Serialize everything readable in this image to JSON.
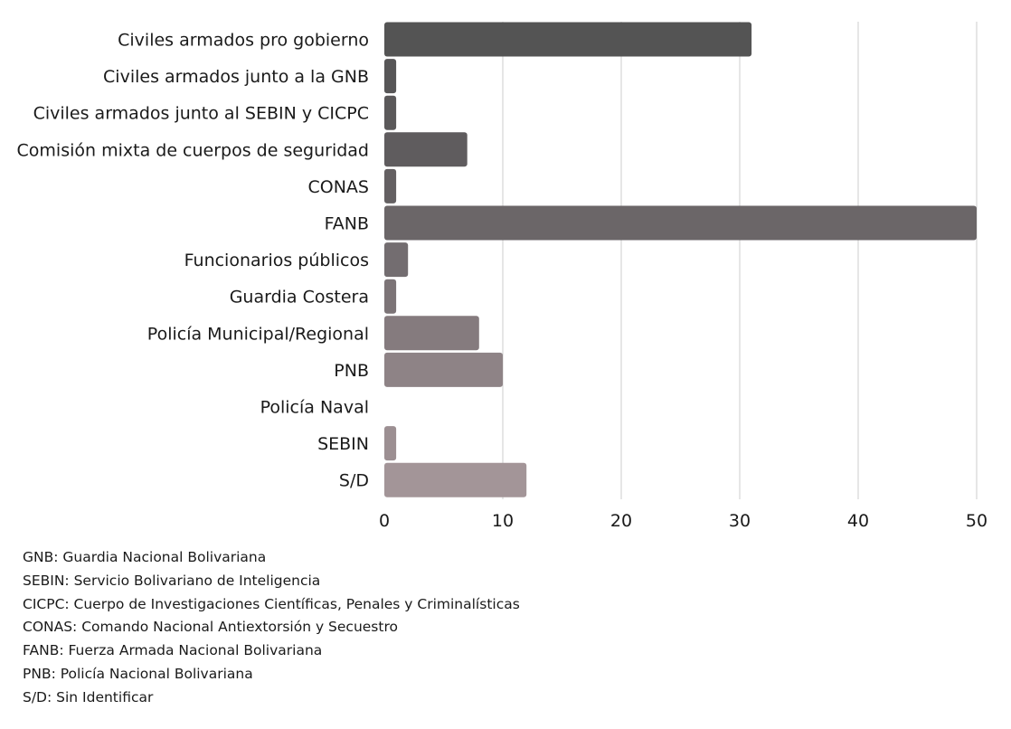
{
  "chart_data": {
    "type": "bar",
    "orientation": "horizontal",
    "categories": [
      "Civiles armados pro gobierno",
      "Civiles armados junto a la GNB",
      "Civiles armados junto al SEBIN y CICPC",
      "Comisión mixta de cuerpos de seguridad",
      "CONAS",
      "FANB",
      "Funcionarios públicos",
      "Guardia Costera",
      "Policía Municipal/Regional",
      "PNB",
      "Policía Naval",
      "SEBIN",
      "S/D"
    ],
    "values": [
      31,
      1,
      1,
      7,
      1,
      50,
      2,
      1,
      8,
      10,
      0,
      1,
      12
    ],
    "bar_colors": [
      "#545454",
      "#575657",
      "#5b595a",
      "#5f5c5e",
      "#646062",
      "#6b6668",
      "#736d70",
      "#7c7477",
      "#857b7e",
      "#8e8386",
      "#968a8d",
      "#9c8f92",
      "#a39598"
    ],
    "xticks": [
      0,
      10,
      20,
      30,
      40,
      50
    ],
    "xlim": [
      0,
      50
    ],
    "grid": true,
    "gridline_color": "#cccccc",
    "legend": "none"
  },
  "notes": [
    "GNB: Guardia Nacional Bolivariana",
    "SEBIN: Servicio Bolivariano de Inteligencia",
    "CICPC: Cuerpo de Investigaciones Científicas, Penales y Criminalísticas",
    "CONAS: Comando Nacional Antiextorsión y Secuestro",
    "FANB: Fuerza Armada Nacional Bolivariana",
    "PNB: Policía Nacional Bolivariana",
    "S/D: Sin Identificar"
  ]
}
